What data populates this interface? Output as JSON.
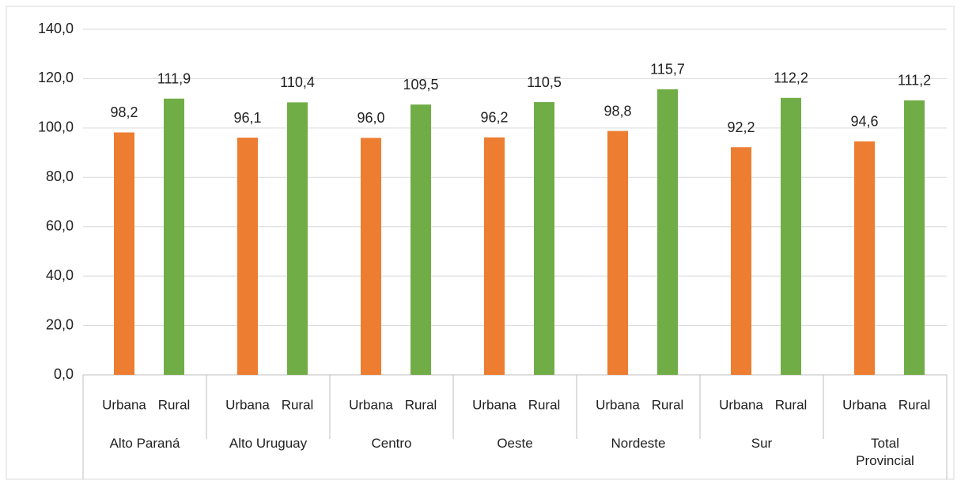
{
  "chart_data": {
    "type": "bar",
    "categories": [
      "Alto Paraná",
      "Alto Uruguay",
      "Centro",
      "Oeste",
      "Nordeste",
      "Sur",
      "Total Provincial"
    ],
    "series": [
      {
        "name": "Urbana",
        "color": "#ed7d31",
        "values": [
          98.2,
          96.1,
          96.0,
          96.2,
          98.8,
          92.2,
          94.6
        ],
        "value_labels": [
          "98,2",
          "96,1",
          "96,0",
          "96,2",
          "98,8",
          "92,2",
          "94,6"
        ]
      },
      {
        "name": "Rural",
        "color": "#70ad47",
        "values": [
          111.9,
          110.4,
          109.5,
          110.5,
          115.7,
          112.2,
          111.2
        ],
        "value_labels": [
          "111,9",
          "110,4",
          "109,5",
          "110,5",
          "115,7",
          "112,2",
          "111,2"
        ]
      }
    ],
    "ylim": [
      0,
      140
    ],
    "yticks": [
      {
        "value": 0,
        "label": "0,0"
      },
      {
        "value": 20,
        "label": "20,0"
      },
      {
        "value": 40,
        "label": "40,0"
      },
      {
        "value": 60,
        "label": "60,0"
      },
      {
        "value": 80,
        "label": "80,0"
      },
      {
        "value": 100,
        "label": "100,0"
      },
      {
        "value": 120,
        "label": "120,0"
      },
      {
        "value": 140,
        "label": "140,0"
      }
    ],
    "grid": true
  }
}
